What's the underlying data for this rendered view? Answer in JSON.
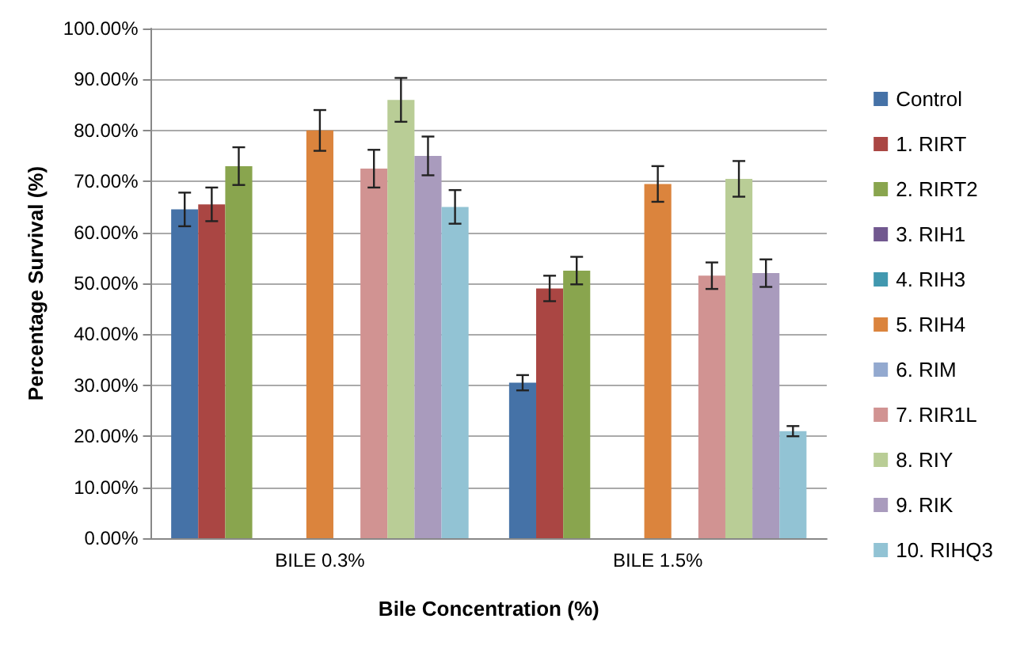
{
  "chart_data": {
    "type": "bar",
    "xlabel": "Bile Concentration (%)",
    "ylabel": "Percentage Survival (%)",
    "categories": [
      "BILE 0.3%",
      "BILE 1.5%"
    ],
    "series": [
      {
        "name": "Control",
        "color": "#4572a7",
        "values": [
          64.5,
          30.5
        ],
        "errors": [
          3.3,
          1.5
        ]
      },
      {
        "name": "1. RIRT",
        "color": "#aa4643",
        "values": [
          65.5,
          49
        ],
        "errors": [
          3.3,
          2.5
        ]
      },
      {
        "name": "2. RIRT2",
        "color": "#89a54e",
        "values": [
          73,
          52.5
        ],
        "errors": [
          3.7,
          2.7
        ]
      },
      {
        "name": "3. RIH1",
        "color": "#71588f",
        "values": [
          null,
          null
        ]
      },
      {
        "name": "4. RIH3",
        "color": "#4198af",
        "values": [
          null,
          null
        ]
      },
      {
        "name": "5. RIH4",
        "color": "#db843d",
        "values": [
          80,
          69.5
        ],
        "errors": [
          4,
          3.5
        ]
      },
      {
        "name": "6. RIM",
        "color": "#93a9cf",
        "values": [
          null,
          null
        ]
      },
      {
        "name": "7. RIR1L",
        "color": "#d19392",
        "values": [
          72.5,
          51.5
        ],
        "errors": [
          3.7,
          2.6
        ]
      },
      {
        "name": "8. RIY",
        "color": "#b9cd96",
        "values": [
          86,
          70.5
        ],
        "errors": [
          4.3,
          3.5
        ]
      },
      {
        "name": "9. RIK",
        "color": "#a99bbd",
        "values": [
          75,
          52
        ],
        "errors": [
          3.8,
          2.7
        ]
      },
      {
        "name": "10. RIHQ3",
        "color": "#92c3d4",
        "values": [
          65,
          21
        ],
        "errors": [
          3.3,
          1
        ]
      }
    ],
    "ylim": [
      0,
      100
    ],
    "yticks": [
      {
        "value": 0,
        "label": "0.00%"
      },
      {
        "value": 10,
        "label": "10.00%"
      },
      {
        "value": 20,
        "label": "20.00%"
      },
      {
        "value": 30,
        "label": "30.00%"
      },
      {
        "value": 40,
        "label": "40.00%"
      },
      {
        "value": 50,
        "label": "50.00%"
      },
      {
        "value": 60,
        "label": "60.00%"
      },
      {
        "value": 70,
        "label": "70.00%"
      },
      {
        "value": 80,
        "label": "80.00%"
      },
      {
        "value": 90,
        "label": "90.00%"
      },
      {
        "value": 100,
        "label": "100.00%"
      }
    ],
    "grid": "y",
    "legend": "right"
  }
}
